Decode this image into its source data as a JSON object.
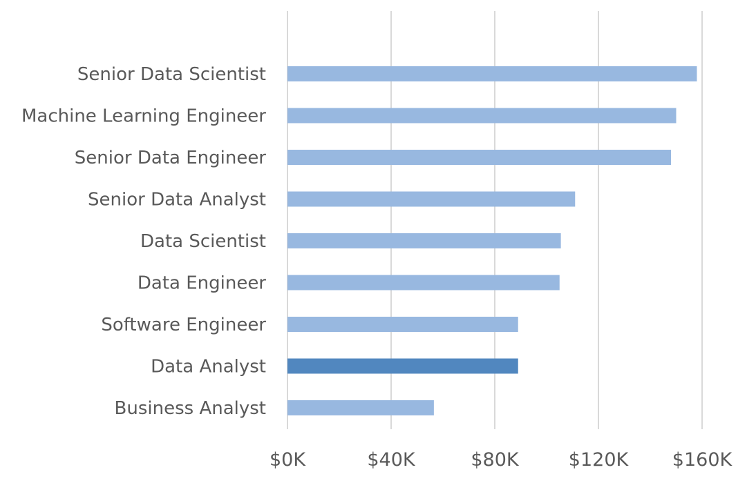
{
  "chart_data": {
    "type": "bar",
    "orientation": "horizontal",
    "title": "",
    "xlabel": "",
    "ylabel": "",
    "categories": [
      "Senior Data Scientist",
      "Machine Learning Engineer",
      "Senior Data Engineer",
      "Senior Data Analyst",
      "Data Scientist",
      "Data Engineer",
      "Software Engineer",
      "Data Analyst",
      "Business Analyst"
    ],
    "values": [
      158000,
      150000,
      148000,
      111000,
      105500,
      105000,
      89000,
      89000,
      56500
    ],
    "highlight_index": 7,
    "xlim": [
      0,
      160000
    ],
    "x_ticks": [
      0,
      40000,
      80000,
      120000,
      160000
    ],
    "x_tick_labels": [
      "$0K",
      "$40K",
      "$80K",
      "$120K",
      "$160K"
    ],
    "grid": "vertical",
    "legend": "none",
    "colors": {
      "bar": "#98b8e0",
      "highlight": "#5187bf",
      "grid": "#d9d9d9",
      "text": "#595959"
    }
  }
}
